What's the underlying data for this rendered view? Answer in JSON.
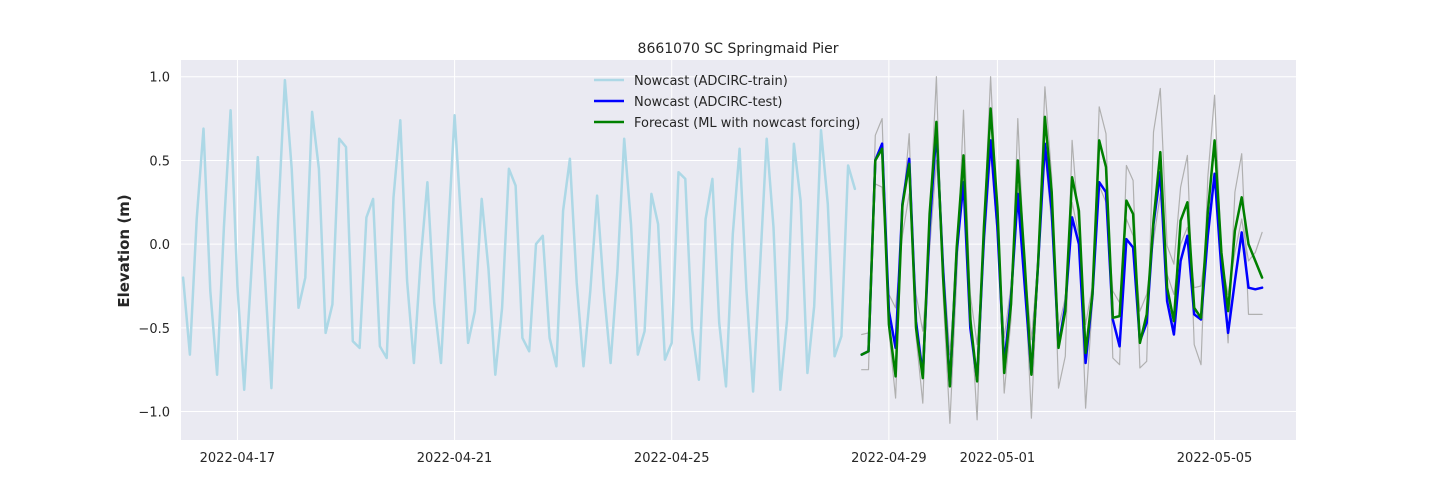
{
  "chart_data": {
    "type": "line",
    "title": "8661070 SC Springmaid Pier",
    "xlabel": "",
    "ylabel": "Elevation (m)",
    "xlim": [
      "2022-04-15T23:03",
      "2022-05-06T12:00"
    ],
    "ylim": [
      -1.17,
      1.1
    ],
    "x_ticks": [
      "2022-04-17",
      "2022-04-21",
      "2022-04-25",
      "2022-04-29",
      "2022-05-01",
      "2022-05-05"
    ],
    "y_ticks": [
      -1.0,
      -0.5,
      0.0,
      0.5,
      1.0
    ],
    "y_tick_labels": [
      "−1.0",
      "−0.5",
      "0.0",
      "0.5",
      "1.0"
    ],
    "grid": true,
    "legend_position": "top-center",
    "colors": {
      "background": "#eaeaf2",
      "grid": "#ffffff",
      "train": "#add8e6",
      "test": "#0000ff",
      "forecast": "#008000",
      "ensemble": "#b0b0b0"
    },
    "series": [
      {
        "name": "Nowcast (ADCIRC-train)",
        "color": "#add8e6",
        "x": [
          "2022-04-16T00:00",
          "2022-04-16T03:00",
          "2022-04-16T06:00",
          "2022-04-16T09:00",
          "2022-04-16T12:00",
          "2022-04-16T15:00",
          "2022-04-16T18:00",
          "2022-04-16T21:00",
          "2022-04-17T00:00",
          "2022-04-17T03:00",
          "2022-04-17T06:00",
          "2022-04-17T09:00",
          "2022-04-17T12:00",
          "2022-04-17T15:00",
          "2022-04-17T18:00",
          "2022-04-17T21:00",
          "2022-04-18T00:00",
          "2022-04-18T03:00",
          "2022-04-18T06:00",
          "2022-04-18T09:00",
          "2022-04-18T12:00",
          "2022-04-18T15:00",
          "2022-04-18T18:00",
          "2022-04-18T21:00",
          "2022-04-19T00:00",
          "2022-04-19T03:00",
          "2022-04-19T06:00",
          "2022-04-19T09:00",
          "2022-04-19T12:00",
          "2022-04-19T15:00",
          "2022-04-19T18:00",
          "2022-04-19T21:00",
          "2022-04-20T00:00",
          "2022-04-20T03:00",
          "2022-04-20T06:00",
          "2022-04-20T09:00",
          "2022-04-20T12:00",
          "2022-04-20T15:00",
          "2022-04-20T18:00",
          "2022-04-20T21:00",
          "2022-04-21T00:00",
          "2022-04-21T03:00",
          "2022-04-21T06:00",
          "2022-04-21T09:00",
          "2022-04-21T12:00",
          "2022-04-21T15:00",
          "2022-04-21T18:00",
          "2022-04-21T21:00",
          "2022-04-22T00:00",
          "2022-04-22T03:00",
          "2022-04-22T06:00",
          "2022-04-22T09:00",
          "2022-04-22T12:00",
          "2022-04-22T15:00",
          "2022-04-22T18:00",
          "2022-04-22T21:00",
          "2022-04-23T00:00",
          "2022-04-23T03:00",
          "2022-04-23T06:00",
          "2022-04-23T09:00",
          "2022-04-23T12:00",
          "2022-04-23T15:00",
          "2022-04-23T18:00",
          "2022-04-23T21:00",
          "2022-04-24T00:00",
          "2022-04-24T03:00",
          "2022-04-24T06:00",
          "2022-04-24T09:00",
          "2022-04-24T12:00",
          "2022-04-24T15:00",
          "2022-04-24T18:00",
          "2022-04-24T21:00",
          "2022-04-25T00:00",
          "2022-04-25T03:00",
          "2022-04-25T06:00",
          "2022-04-25T09:00",
          "2022-04-25T12:00",
          "2022-04-25T15:00",
          "2022-04-25T18:00",
          "2022-04-25T21:00",
          "2022-04-26T00:00",
          "2022-04-26T03:00",
          "2022-04-26T06:00",
          "2022-04-26T09:00",
          "2022-04-26T12:00",
          "2022-04-26T15:00",
          "2022-04-26T18:00",
          "2022-04-26T21:00",
          "2022-04-27T00:00",
          "2022-04-27T03:00",
          "2022-04-27T06:00",
          "2022-04-27T09:00",
          "2022-04-27T12:00",
          "2022-04-27T15:00",
          "2022-04-27T18:00",
          "2022-04-27T21:00",
          "2022-04-28T00:00",
          "2022-04-28T03:00",
          "2022-04-28T06:00",
          "2022-04-28T09:00"
        ],
        "y": [
          -0.2,
          -0.66,
          0.15,
          0.69,
          -0.28,
          -0.78,
          0.1,
          0.8,
          -0.25,
          -0.87,
          -0.2,
          0.52,
          -0.16,
          -0.86,
          0.15,
          0.98,
          0.45,
          -0.38,
          -0.2,
          0.79,
          0.45,
          -0.53,
          -0.36,
          0.63,
          0.58,
          -0.58,
          -0.62,
          0.16,
          0.27,
          -0.61,
          -0.68,
          0.28,
          0.74,
          -0.22,
          -0.71,
          -0.1,
          0.37,
          -0.35,
          -0.71,
          0.03,
          0.77,
          0.11,
          -0.59,
          -0.4,
          0.27,
          -0.15,
          -0.78,
          -0.38,
          0.45,
          0.35,
          -0.56,
          -0.64,
          0.0,
          0.05,
          -0.56,
          -0.73,
          0.2,
          0.51,
          -0.23,
          -0.73,
          -0.28,
          0.29,
          -0.28,
          -0.71,
          -0.16,
          0.63,
          0.12,
          -0.66,
          -0.52,
          0.3,
          0.12,
          -0.69,
          -0.59,
          0.43,
          0.39,
          -0.51,
          -0.81,
          0.15,
          0.39,
          -0.47,
          -0.85,
          0.06,
          0.57,
          -0.27,
          -0.88,
          -0.15,
          0.63,
          0.1,
          -0.87,
          -0.45,
          0.6,
          0.26,
          -0.77,
          -0.37,
          0.68,
          0.24,
          -0.67,
          -0.55,
          0.47,
          0.33
        ]
      },
      {
        "name": "Nowcast (ADCIRC-test)",
        "color": "#0000ff",
        "x": [
          "2022-04-28T12:00",
          "2022-04-28T15:00",
          "2022-04-28T18:00",
          "2022-04-28T21:00",
          "2022-04-29T00:00",
          "2022-04-29T03:00",
          "2022-04-29T06:00",
          "2022-04-29T09:00",
          "2022-04-29T12:00",
          "2022-04-29T15:00",
          "2022-04-29T18:00",
          "2022-04-29T21:00",
          "2022-04-30T00:00",
          "2022-04-30T03:00",
          "2022-04-30T06:00",
          "2022-04-30T09:00",
          "2022-04-30T12:00",
          "2022-04-30T15:00",
          "2022-04-30T18:00",
          "2022-04-30T21:00",
          "2022-05-01T00:00",
          "2022-05-01T03:00",
          "2022-05-01T06:00",
          "2022-05-01T09:00",
          "2022-05-01T12:00",
          "2022-05-01T15:00",
          "2022-05-01T18:00",
          "2022-05-01T21:00",
          "2022-05-02T00:00",
          "2022-05-02T03:00",
          "2022-05-02T06:00",
          "2022-05-02T09:00",
          "2022-05-02T12:00",
          "2022-05-02T15:00",
          "2022-05-02T18:00",
          "2022-05-02T21:00",
          "2022-05-03T00:00",
          "2022-05-03T03:00",
          "2022-05-03T06:00",
          "2022-05-03T09:00",
          "2022-05-03T12:00",
          "2022-05-03T15:00",
          "2022-05-03T18:00",
          "2022-05-03T21:00",
          "2022-05-04T00:00",
          "2022-05-04T03:00",
          "2022-05-04T06:00",
          "2022-05-04T09:00",
          "2022-05-04T12:00",
          "2022-05-04T15:00",
          "2022-05-04T18:00",
          "2022-05-04T21:00",
          "2022-05-05T00:00",
          "2022-05-05T03:00",
          "2022-05-05T06:00",
          "2022-05-05T09:00",
          "2022-05-05T12:00",
          "2022-05-05T15:00",
          "2022-05-05T18:00",
          "2022-05-05T21:00"
        ],
        "y": [
          -0.66,
          -0.64,
          0.5,
          0.6,
          -0.4,
          -0.62,
          0.24,
          0.51,
          -0.46,
          -0.78,
          0.1,
          0.68,
          -0.15,
          -0.84,
          -0.05,
          0.37,
          -0.5,
          -0.81,
          0.04,
          0.62,
          0.1,
          -0.72,
          -0.32,
          0.3,
          -0.24,
          -0.77,
          -0.12,
          0.6,
          0.2,
          -0.61,
          -0.37,
          0.16,
          0.0,
          -0.71,
          -0.31,
          0.37,
          0.31,
          -0.45,
          -0.61,
          0.03,
          -0.02,
          -0.58,
          -0.47,
          0.12,
          0.43,
          -0.34,
          -0.54,
          -0.1,
          0.05,
          -0.42,
          -0.45,
          0.05,
          0.42,
          -0.15,
          -0.53,
          -0.22,
          0.07,
          -0.26,
          -0.27,
          -0.26
        ]
      },
      {
        "name": "Forecast (ML with nowcast forcing)",
        "color": "#008000",
        "x": [
          "2022-04-28T12:00",
          "2022-04-28T15:00",
          "2022-04-28T18:00",
          "2022-04-28T21:00",
          "2022-04-29T00:00",
          "2022-04-29T03:00",
          "2022-04-29T06:00",
          "2022-04-29T09:00",
          "2022-04-29T12:00",
          "2022-04-29T15:00",
          "2022-04-29T18:00",
          "2022-04-29T21:00",
          "2022-04-30T00:00",
          "2022-04-30T03:00",
          "2022-04-30T06:00",
          "2022-04-30T09:00",
          "2022-04-30T12:00",
          "2022-04-30T15:00",
          "2022-04-30T18:00",
          "2022-04-30T21:00",
          "2022-05-01T00:00",
          "2022-05-01T03:00",
          "2022-05-01T06:00",
          "2022-05-01T09:00",
          "2022-05-01T12:00",
          "2022-05-01T15:00",
          "2022-05-01T18:00",
          "2022-05-01T21:00",
          "2022-05-02T00:00",
          "2022-05-02T03:00",
          "2022-05-02T06:00",
          "2022-05-02T09:00",
          "2022-05-02T12:00",
          "2022-05-02T15:00",
          "2022-05-02T18:00",
          "2022-05-02T21:00",
          "2022-05-03T00:00",
          "2022-05-03T03:00",
          "2022-05-03T06:00",
          "2022-05-03T09:00",
          "2022-05-03T12:00",
          "2022-05-03T15:00",
          "2022-05-03T18:00",
          "2022-05-03T21:00",
          "2022-05-04T00:00",
          "2022-05-04T03:00",
          "2022-05-04T06:00",
          "2022-05-04T09:00",
          "2022-05-04T12:00",
          "2022-05-04T15:00",
          "2022-05-04T18:00",
          "2022-05-04T21:00",
          "2022-05-05T00:00",
          "2022-05-05T03:00",
          "2022-05-05T06:00",
          "2022-05-05T09:00",
          "2022-05-05T12:00",
          "2022-05-05T15:00",
          "2022-05-05T18:00",
          "2022-05-05T21:00"
        ],
        "y": [
          -0.66,
          -0.64,
          0.5,
          0.57,
          -0.48,
          -0.79,
          0.23,
          0.48,
          -0.5,
          -0.8,
          0.18,
          0.73,
          -0.2,
          -0.85,
          -0.02,
          0.53,
          -0.45,
          -0.82,
          0.1,
          0.81,
          0.22,
          -0.77,
          -0.36,
          0.5,
          -0.1,
          -0.78,
          -0.11,
          0.76,
          0.31,
          -0.62,
          -0.4,
          0.4,
          0.2,
          -0.65,
          -0.3,
          0.62,
          0.46,
          -0.44,
          -0.43,
          0.26,
          0.18,
          -0.59,
          -0.42,
          0.14,
          0.55,
          -0.26,
          -0.46,
          0.14,
          0.25,
          -0.38,
          -0.44,
          0.19,
          0.62,
          -0.05,
          -0.4,
          0.08,
          0.28,
          0.0,
          -0.1,
          -0.2
        ]
      },
      {
        "color": "#b0b0b0",
        "x": [
          "2022-04-28T12:00",
          "2022-04-28T15:00",
          "2022-04-28T18:00",
          "2022-04-28T21:00",
          "2022-04-29T00:00",
          "2022-04-29T03:00",
          "2022-04-29T06:00",
          "2022-04-29T09:00",
          "2022-04-29T12:00",
          "2022-04-29T15:00",
          "2022-04-29T18:00",
          "2022-04-29T21:00",
          "2022-04-30T00:00",
          "2022-04-30T03:00",
          "2022-04-30T06:00",
          "2022-04-30T09:00",
          "2022-04-30T12:00",
          "2022-04-30T15:00",
          "2022-04-30T18:00",
          "2022-04-30T21:00",
          "2022-05-01T00:00",
          "2022-05-01T03:00",
          "2022-05-01T06:00",
          "2022-05-01T09:00",
          "2022-05-01T12:00",
          "2022-05-01T15:00",
          "2022-05-01T18:00",
          "2022-05-01T21:00",
          "2022-05-02T00:00",
          "2022-05-02T03:00",
          "2022-05-02T06:00",
          "2022-05-02T09:00",
          "2022-05-02T12:00",
          "2022-05-02T15:00",
          "2022-05-02T18:00",
          "2022-05-02T21:00",
          "2022-05-03T00:00",
          "2022-05-03T03:00",
          "2022-05-03T06:00",
          "2022-05-03T09:00",
          "2022-05-03T12:00",
          "2022-05-03T15:00",
          "2022-05-03T18:00",
          "2022-05-03T21:00",
          "2022-05-04T00:00",
          "2022-05-04T03:00",
          "2022-05-04T06:00",
          "2022-05-04T09:00",
          "2022-05-04T12:00",
          "2022-05-04T15:00",
          "2022-05-04T18:00",
          "2022-05-04T21:00",
          "2022-05-05T00:00",
          "2022-05-05T03:00",
          "2022-05-05T06:00",
          "2022-05-05T09:00",
          "2022-05-05T12:00",
          "2022-05-05T15:00",
          "2022-05-05T18:00",
          "2022-05-05T21:00"
        ],
        "y": [
          -0.75,
          -0.75,
          0.65,
          0.75,
          -0.52,
          -0.92,
          0.18,
          0.66,
          -0.55,
          -0.95,
          0.15,
          1.0,
          -0.3,
          -1.07,
          -0.2,
          0.8,
          -0.35,
          -1.05,
          0.1,
          1.0,
          0.15,
          -0.89,
          -0.45,
          0.75,
          -0.15,
          -1.04,
          -0.1,
          0.94,
          0.4,
          -0.86,
          -0.67,
          0.62,
          0.1,
          -0.98,
          -0.35,
          0.82,
          0.66,
          -0.68,
          -0.72,
          0.47,
          0.38,
          -0.74,
          -0.7,
          0.67,
          0.93,
          -0.01,
          -0.12,
          0.34,
          0.53,
          -0.6,
          -0.72,
          0.4,
          0.89,
          -0.06,
          -0.59,
          0.31,
          0.54,
          -0.42,
          -0.42,
          -0.42
        ]
      },
      {
        "color": "#b0b0b0",
        "x": [
          "2022-04-28T12:00",
          "2022-04-28T15:00",
          "2022-04-28T18:00",
          "2022-04-28T21:00",
          "2022-04-29T00:00",
          "2022-04-29T03:00",
          "2022-04-29T06:00",
          "2022-04-29T09:00",
          "2022-04-29T12:00",
          "2022-04-29T15:00",
          "2022-04-29T18:00",
          "2022-04-29T21:00",
          "2022-04-30T00:00",
          "2022-04-30T03:00",
          "2022-04-30T06:00",
          "2022-04-30T09:00",
          "2022-04-30T12:00",
          "2022-04-30T15:00",
          "2022-04-30T18:00",
          "2022-04-30T21:00",
          "2022-05-01T00:00",
          "2022-05-01T03:00",
          "2022-05-01T06:00",
          "2022-05-01T09:00",
          "2022-05-01T12:00",
          "2022-05-01T15:00",
          "2022-05-01T18:00",
          "2022-05-01T21:00",
          "2022-05-02T00:00",
          "2022-05-02T03:00",
          "2022-05-02T06:00",
          "2022-05-02T09:00",
          "2022-05-02T12:00",
          "2022-05-02T15:00",
          "2022-05-02T18:00",
          "2022-05-02T21:00",
          "2022-05-03T00:00",
          "2022-05-03T03:00",
          "2022-05-03T06:00",
          "2022-05-03T09:00",
          "2022-05-03T12:00",
          "2022-05-03T15:00",
          "2022-05-03T18:00",
          "2022-05-03T21:00",
          "2022-05-04T00:00",
          "2022-05-04T03:00",
          "2022-05-04T06:00",
          "2022-05-04T09:00",
          "2022-05-04T12:00",
          "2022-05-04T15:00",
          "2022-05-04T18:00",
          "2022-05-04T21:00",
          "2022-05-05T00:00",
          "2022-05-05T03:00",
          "2022-05-05T06:00",
          "2022-05-05T09:00",
          "2022-05-05T12:00",
          "2022-05-05T15:00",
          "2022-05-05T18:00",
          "2022-05-05T21:00"
        ],
        "y": [
          -0.54,
          -0.53,
          0.36,
          0.34,
          -0.3,
          -0.38,
          0.05,
          0.3,
          -0.3,
          -0.52,
          -0.03,
          0.5,
          -0.1,
          -0.66,
          -0.1,
          0.45,
          -0.3,
          -0.6,
          -0.05,
          0.55,
          0.05,
          -0.56,
          -0.25,
          0.35,
          -0.12,
          -0.57,
          -0.1,
          0.55,
          0.12,
          -0.5,
          -0.32,
          0.25,
          0.05,
          -0.48,
          -0.25,
          0.35,
          0.25,
          -0.28,
          -0.35,
          0.15,
          0.05,
          -0.4,
          -0.3,
          0.02,
          0.3,
          -0.18,
          -0.3,
          0.0,
          0.1,
          -0.26,
          -0.25,
          0.06,
          0.4,
          -0.1,
          -0.3,
          -0.05,
          0.15,
          -0.1,
          -0.05,
          0.07
        ]
      }
    ]
  }
}
